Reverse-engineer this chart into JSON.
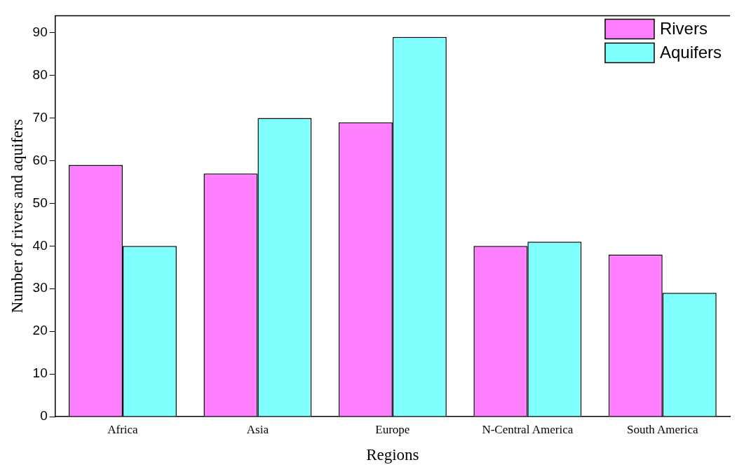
{
  "chart_data": {
    "type": "bar",
    "xlabel": "Regions",
    "ylabel": "Number of rivers and aquifers",
    "categories": [
      "Africa",
      "Asia",
      "Europe",
      "N-Central America",
      "South America"
    ],
    "series": [
      {
        "name": "Rivers",
        "color": "#ff80ff",
        "values": [
          59,
          57,
          69,
          40,
          38
        ]
      },
      {
        "name": "Aquifers",
        "color": "#80ffff",
        "values": [
          40,
          70,
          89,
          41,
          29
        ]
      }
    ],
    "ylim": [
      0,
      94
    ],
    "yticks": [
      0,
      10,
      20,
      30,
      40,
      50,
      60,
      70,
      80,
      90
    ],
    "grid": false,
    "legend": "top right"
  }
}
